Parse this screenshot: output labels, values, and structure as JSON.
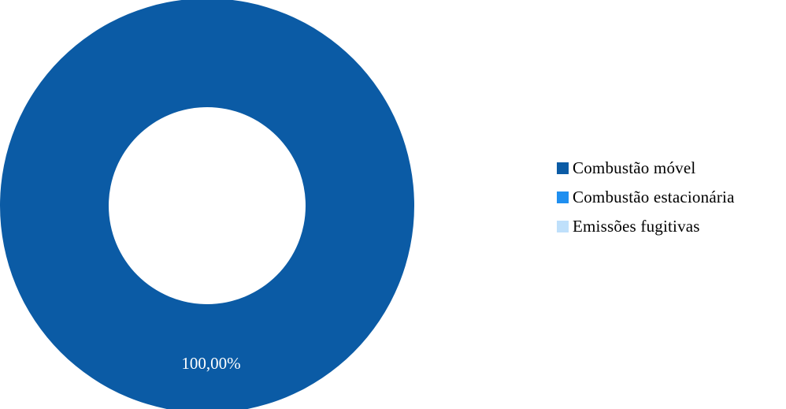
{
  "chart_data": {
    "type": "pie",
    "variant": "donut",
    "categories": [
      "Combustão móvel",
      "Combustão estacionária",
      "Emissões fugitivas"
    ],
    "values": [
      100.0,
      0.0,
      0.0
    ],
    "value_labels": [
      "100,00%"
    ],
    "colors": [
      "#0b5ba5",
      "#1f8ff0",
      "#bfe0fb"
    ],
    "legend_position": "right"
  }
}
